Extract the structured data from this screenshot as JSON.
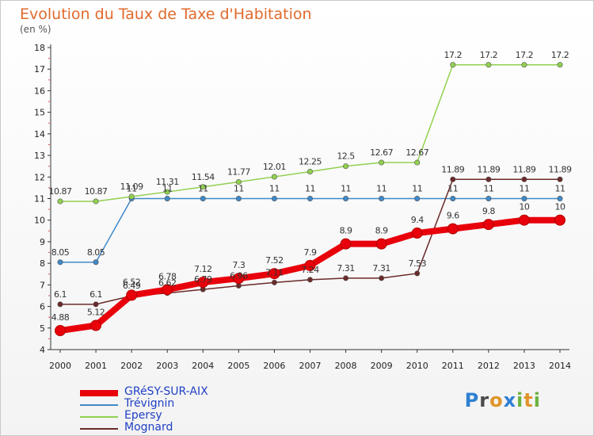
{
  "title": "Evolution du Taux de Taxe d'Habitation",
  "units": "(en %)",
  "logo": {
    "text": "Proxiti",
    "letters": [
      "P",
      "r",
      "o",
      "x",
      "i",
      "t",
      "i"
    ],
    "colors": [
      "#2e7fd3",
      "#4a4a4a",
      "#e0942a",
      "#2e7fd3",
      "#6cb33f",
      "#e0942a",
      "#6cb33f"
    ]
  },
  "chart_data": {
    "type": "line",
    "title": "Evolution du Taux de Taxe d'Habitation",
    "ylabel": "(en %)",
    "xlabel": "",
    "x": [
      "2000",
      "2001",
      "2002",
      "2003",
      "2004",
      "2005",
      "2006",
      "2007",
      "2008",
      "2009",
      "2010",
      "2011",
      "2012",
      "2013",
      "2014"
    ],
    "ylim": [
      4,
      18
    ],
    "yticks": [
      "4",
      "5",
      "6",
      "7",
      "8",
      "9",
      "10",
      "11",
      "12",
      "13",
      "14",
      "15",
      "16",
      "17",
      "18"
    ],
    "grid": false,
    "legend_position": "bottom-left",
    "series": [
      {
        "name": "GRéSY-SUR-AIX",
        "color": "#e8000b",
        "values": [
          4.88,
          5.12,
          6.52,
          6.78,
          7.12,
          7.3,
          7.52,
          7.9,
          8.9,
          8.9,
          9.4,
          9.6,
          9.8,
          10,
          10
        ],
        "labels": [
          "4.88",
          "5.12",
          "6.52",
          "6.78",
          "7.12",
          "7.3",
          "7.52",
          "7.9",
          "8.9",
          "8.9",
          "9.4",
          "9.6",
          "9.8",
          "10",
          "10"
        ]
      },
      {
        "name": "Trévignin",
        "color": "#3f89c8",
        "values": [
          8.05,
          8.05,
          11,
          11,
          11,
          11,
          11,
          11,
          11,
          11,
          11,
          11,
          11,
          11,
          11
        ],
        "labels": [
          "8.05",
          "8.05",
          "11",
          "11",
          "11",
          "11",
          "11",
          "11",
          "11",
          "11",
          "11",
          "11",
          "11",
          "11",
          "11"
        ]
      },
      {
        "name": "Epersy",
        "color": "#92d050",
        "values": [
          10.87,
          10.87,
          11.09,
          11.31,
          11.54,
          11.77,
          12.01,
          12.25,
          12.5,
          12.67,
          12.67,
          17.2,
          17.2,
          17.2,
          17.2
        ],
        "labels": [
          "10.87",
          "10.87",
          "11.09",
          "11.31",
          "11.54",
          "11.77",
          "12.01",
          "12.25",
          "12.5",
          "12.67",
          "12.67",
          "17.2",
          "17.2",
          "17.2",
          "17.2"
        ]
      },
      {
        "name": "Mognard",
        "color": "#6b2a2a",
        "values": [
          6.1,
          6.1,
          6.49,
          6.62,
          6.79,
          6.96,
          7.11,
          7.24,
          7.31,
          7.31,
          7.53,
          11.89,
          11.89,
          11.89,
          11.89
        ],
        "labels": [
          "6.1",
          "6.1",
          "6.49",
          "6.62",
          "6.79",
          "6.96",
          "7.11",
          "7.24",
          "7.31",
          "7.31",
          "7.53",
          "11.89",
          "11.89",
          "11.89",
          "11.89"
        ]
      }
    ]
  }
}
